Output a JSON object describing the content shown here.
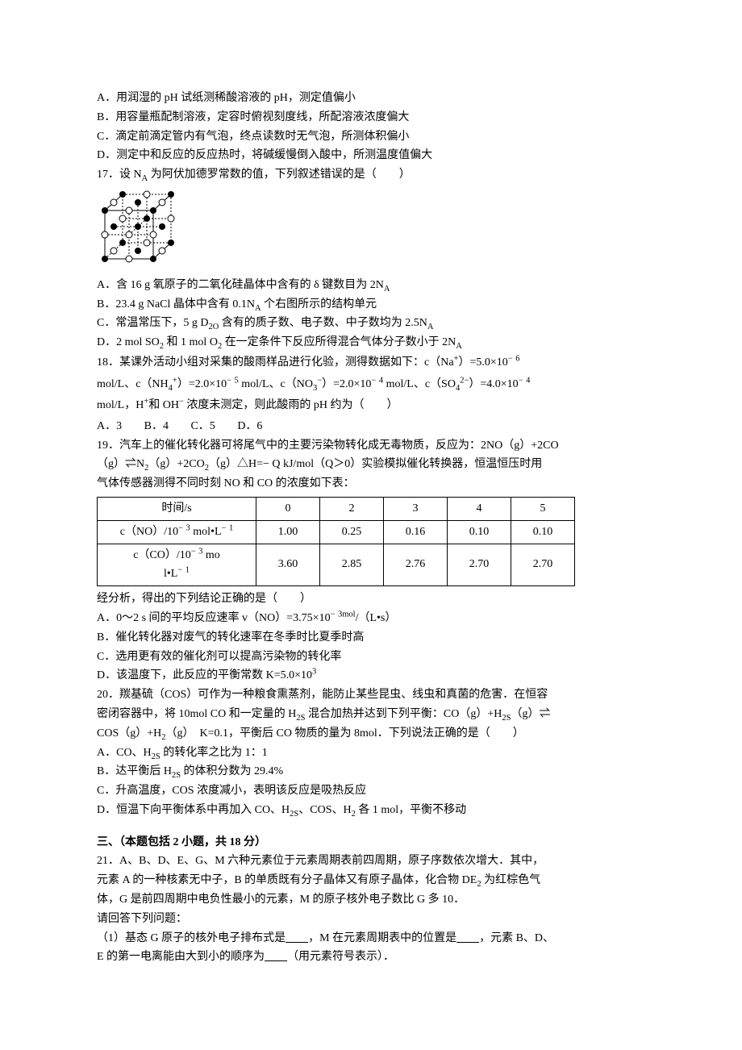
{
  "q16": {
    "A": "A．用润湿的 pH 试纸测稀酸溶液的 pH，测定值偏小",
    "B": "B．用容量瓶配制溶液，定容时俯视刻度线，所配溶液浓度偏大",
    "C": "C．滴定前滴定管内有气泡，终点读数时无气泡，所测体积偏小",
    "D": "D．测定中和反应的反应热时，将碱缓慢倒入酸中，所测温度值偏大"
  },
  "q17": {
    "stem": "17．设 N_A 为阿伏加德罗常数的值，下列叙述错误的是（　　）",
    "diagram": {
      "width": 108,
      "height": 92,
      "bg": "#ffffff",
      "line_color": "#000000",
      "atom_fill_dark": "#000000",
      "atom_fill_light": "#ffffff"
    },
    "A": "A．含 16 g 氧原子的二氧化硅晶体中含有的 δ 键数目为 2N_A",
    "B": "B．23.4 g NaCl 晶体中含有 0.1N_A 个右图所示的结构单元",
    "C": "C．常温常压下，5 g D_2O 含有的质子数、电子数、中子数均为 2.5N_A",
    "D": "D．2 mol SO_2 和 1 mol O_2 在一定条件下反应所得混合气体分子数小于 2N_A"
  },
  "q18": {
    "stem1": "18．某课外活动小组对采集的酸雨样品进行化验，测得数据如下：c（Na^+）=5.0×10^− ^6",
    "stem2": "mol/L、c（NH_4^+）=2.0×10^− ^5 mol/L、c（NO_3^−）=2.0×10^− ^4 mol/L、c（SO_4^2^−）=4.0×10^− ^4",
    "stem3": "mol/L，H^+和 OH^− 浓度未测定，则此酸雨的 pH 约为（　　）",
    "opts": {
      "A": "A．3",
      "B": "B．4",
      "C": "C．5",
      "D": "D．6"
    }
  },
  "q19": {
    "stem1": "19．汽车上的催化转化器可将尾气中的主要污染物转化成无毒物质，反应为：2NO（g）+2CO",
    "stem2": "（g）⇌N_2（g）+2CO_2（g）△H=− Q kJ/mol（Q＞0）实验模拟催化转换器，恒温恒压时用",
    "stem3": "气体传感器测得不同时刻 NO 和 CO 的浓度如下表：",
    "table": {
      "head": [
        "时间/s",
        "0",
        "2",
        "3",
        "4",
        "5"
      ],
      "row1_head": "c（NO）/10^− ^3 mol•L^− ^1",
      "row1": [
        "1.00",
        "0.25",
        "0.16",
        "0.10",
        "0.10"
      ],
      "row2_head_a": "c（CO）/10^− ^3 mo",
      "row2_head_b": "l•L^− ^1",
      "row2": [
        "3.60",
        "2.85",
        "2.76",
        "2.70",
        "2.70"
      ]
    },
    "after": "经分析，得出的下列结论正确的是（　　）",
    "A": "A．0～2 s 间的平均反应速率 v（NO）=3.75×10^− ^3mol/（L•s）",
    "B": "B．催化转化器对废气的转化速率在冬季时比夏季时高",
    "C": "C．选用更有效的催化剂可以提高污染物的转化率",
    "D": "D．该温度下，此反应的平衡常数 K=5.0×10^3"
  },
  "q20": {
    "stem1": "20．羰基硫（COS）可作为一种粮食熏蒸剂，能防止某些昆虫、线虫和真菌的危害．在恒容",
    "stem2": "密闭容器中，将 10mol CO 和一定量的 H_2S 混合加热并达到下列平衡：CO（g）+H_2S（g）⇌",
    "stem3": "COS（g）+H_2（g）　K=0.1，平衡后 CO 物质的量为 8mol．下列说法正确的是（　　）",
    "A": "A．CO、H_2S 的转化率之比为 1：1",
    "B": "B．达平衡后 H_2S 的体积分数为 29.4%",
    "C": "C．升高温度，COS 浓度减小，表明该反应是吸热反应",
    "D": "D．恒温下向平衡体系中再加入 CO、H_2S、COS、H_2 各 1 mol，平衡不移动"
  },
  "section3": {
    "title": "三、（本题包括 2 小题，共 18 分）",
    "q21": {
      "line1": "21．A、B、D、E、G、M 六种元素位于元素周期表前四周期，原子序数依次增大．其中，",
      "line2": "元素 A 的一种核素无中子，B 的单质既有分子晶体又有原子晶体，化合物 DE_2 为红棕色气",
      "line3": "体，G 是前四周期中电负性最小的元素，M 的原子核外电子数比 G 多 10．",
      "line4": "请回答下列问题：",
      "line5a": "（1）基态 G 原子的核外电子排布式是____，M 在元素周期表中的位置是____，元素 B、D、",
      "line5b": "E 的第一电离能由大到小的顺序为____（用元素符号表示）．"
    }
  }
}
